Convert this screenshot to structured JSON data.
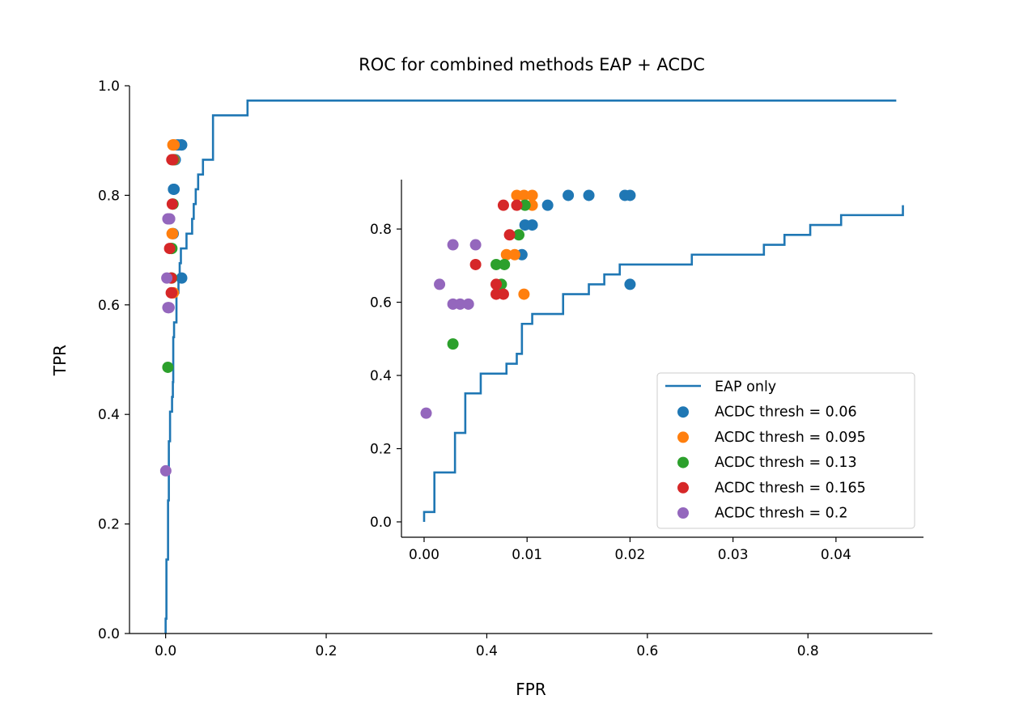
{
  "chart_data": [
    {
      "type": "line",
      "panel": "main",
      "title": "ROC for combined methods EAP + ACDC",
      "xlabel": "FPR",
      "ylabel": "TPR",
      "xlim": [
        -0.045,
        0.955
      ],
      "ylim": [
        0,
        1.0
      ],
      "xticks": [
        0.0,
        0.2,
        0.4,
        0.6,
        0.8
      ],
      "xtick_labels": [
        "0.0",
        "0.2",
        "0.4",
        "0.6",
        "0.8"
      ],
      "yticks": [
        0.0,
        0.2,
        0.4,
        0.6,
        0.8,
        1.0
      ],
      "ytick_labels": [
        "0.0",
        "0.2",
        "0.4",
        "0.6",
        "0.8",
        "1.0"
      ],
      "grid": false,
      "line": {
        "name": "EAP only",
        "color": "#1f77b4",
        "x": [
          0.0,
          0.0,
          0.001,
          0.001,
          0.003,
          0.003,
          0.004,
          0.004,
          0.0055,
          0.0055,
          0.008,
          0.008,
          0.009,
          0.009,
          0.0095,
          0.0095,
          0.0105,
          0.0105,
          0.0135,
          0.0135,
          0.016,
          0.016,
          0.0175,
          0.0175,
          0.019,
          0.019,
          0.026,
          0.026,
          0.033,
          0.033,
          0.035,
          0.035,
          0.0375,
          0.0375,
          0.0405,
          0.0405,
          0.0465,
          0.0465,
          0.059,
          0.059,
          0.102,
          0.102,
          0.91
        ],
        "y": [
          0.0,
          0.027,
          0.027,
          0.135,
          0.135,
          0.243,
          0.243,
          0.351,
          0.351,
          0.405,
          0.405,
          0.432,
          0.432,
          0.459,
          0.459,
          0.541,
          0.541,
          0.568,
          0.568,
          0.622,
          0.622,
          0.649,
          0.649,
          0.676,
          0.676,
          0.703,
          0.703,
          0.73,
          0.73,
          0.757,
          0.757,
          0.784,
          0.784,
          0.811,
          0.811,
          0.838,
          0.838,
          0.865,
          0.865,
          0.946,
          0.946,
          0.973,
          0.973
        ]
      },
      "series": [
        {
          "name": "ACDC thresh = 0.06",
          "color": "#1f77b4",
          "points": [
            [
              0.0095,
              0.73
            ],
            [
              0.0098,
              0.811
            ],
            [
              0.0105,
              0.811
            ],
            [
              0.012,
              0.865
            ],
            [
              0.014,
              0.892
            ],
            [
              0.016,
              0.892
            ],
            [
              0.0195,
              0.892
            ],
            [
              0.02,
              0.892
            ],
            [
              0.02,
              0.649
            ]
          ]
        },
        {
          "name": "ACDC thresh = 0.095",
          "color": "#ff7f0e",
          "points": [
            [
              0.0097,
              0.622
            ],
            [
              0.008,
              0.73
            ],
            [
              0.0088,
              0.73
            ],
            [
              0.009,
              0.892
            ],
            [
              0.0097,
              0.892
            ],
            [
              0.0105,
              0.892
            ],
            [
              0.0105,
              0.865
            ]
          ]
        },
        {
          "name": "ACDC thresh = 0.13",
          "color": "#2ca02c",
          "points": [
            [
              0.0028,
              0.486
            ],
            [
              0.0075,
              0.649
            ],
            [
              0.007,
              0.703
            ],
            [
              0.0078,
              0.703
            ],
            [
              0.0092,
              0.784
            ],
            [
              0.0098,
              0.865
            ]
          ]
        },
        {
          "name": "ACDC thresh = 0.165",
          "color": "#d62728",
          "points": [
            [
              0.007,
              0.622
            ],
            [
              0.0077,
              0.622
            ],
            [
              0.007,
              0.649
            ],
            [
              0.005,
              0.703
            ],
            [
              0.0083,
              0.784
            ],
            [
              0.0077,
              0.865
            ],
            [
              0.009,
              0.865
            ]
          ]
        },
        {
          "name": "ACDC thresh = 0.2",
          "color": "#9467bd",
          "points": [
            [
              0.0002,
              0.297
            ],
            [
              0.0015,
              0.649
            ],
            [
              0.0028,
              0.595
            ],
            [
              0.0035,
              0.595
            ],
            [
              0.0043,
              0.595
            ],
            [
              0.0028,
              0.757
            ],
            [
              0.005,
              0.757
            ]
          ]
        }
      ]
    },
    {
      "type": "line",
      "panel": "inset",
      "xlim": [
        -0.0022,
        0.0485
      ],
      "ylim": [
        -0.042,
        0.935
      ],
      "xticks": [
        0.0,
        0.01,
        0.02,
        0.03,
        0.04
      ],
      "xtick_labels": [
        "0.00",
        "0.01",
        "0.02",
        "0.03",
        "0.04"
      ],
      "yticks": [
        0.0,
        0.2,
        0.4,
        0.6,
        0.8
      ],
      "ytick_labels": [
        "0.0",
        "0.2",
        "0.4",
        "0.6",
        "0.8"
      ],
      "legend": {
        "placement": "lower-right",
        "entries": [
          "EAP only",
          "ACDC thresh = 0.06",
          "ACDC thresh = 0.095",
          "ACDC thresh = 0.13",
          "ACDC thresh = 0.165",
          "ACDC thresh = 0.2"
        ]
      }
    }
  ]
}
